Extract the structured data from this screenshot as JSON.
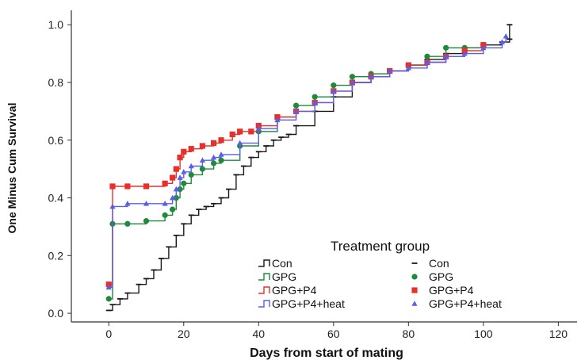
{
  "chart_data": {
    "type": "line",
    "title": "",
    "xlabel": "Days from start of mating",
    "ylabel": "One Minus Cum Survival",
    "xlim": [
      -10,
      125
    ],
    "ylim": [
      -0.03,
      1.05
    ],
    "x_ticks": [
      0,
      20,
      40,
      60,
      80,
      100,
      120
    ],
    "y_ticks": [
      0.0,
      0.2,
      0.4,
      0.6,
      0.8,
      1.0
    ],
    "x_tick_labels": [
      "0",
      "20",
      "40",
      "60",
      "80",
      "100",
      "120"
    ],
    "y_tick_labels": [
      "0.0",
      "0.2",
      "0.4",
      "0.6",
      "0.8",
      "1.0"
    ],
    "grid": false,
    "legend": {
      "title": "Treatment group",
      "placement": "bottom-right",
      "line_entries": [
        "Con",
        "GPG",
        "GPG+P4",
        "GPG+P4+heat"
      ],
      "marker_entries": [
        "Con",
        "GPG",
        "GPG+P4",
        "GPG+P4+heat"
      ]
    },
    "series": [
      {
        "name": "Con",
        "color": "#1a1a1a",
        "marker": "dash",
        "step": true,
        "x": [
          0,
          1,
          3,
          5,
          8,
          10,
          12,
          14,
          16,
          18,
          20,
          22,
          24,
          26,
          28,
          30,
          32,
          34,
          36,
          38,
          40,
          42,
          44,
          46,
          48,
          50,
          55,
          60,
          65,
          70,
          75,
          80,
          85,
          90,
          95,
          100,
          105,
          107,
          107
        ],
        "y": [
          0.01,
          0.03,
          0.05,
          0.07,
          0.1,
          0.12,
          0.15,
          0.19,
          0.23,
          0.27,
          0.31,
          0.34,
          0.36,
          0.37,
          0.38,
          0.4,
          0.43,
          0.48,
          0.51,
          0.54,
          0.56,
          0.58,
          0.6,
          0.61,
          0.62,
          0.65,
          0.7,
          0.75,
          0.8,
          0.82,
          0.84,
          0.86,
          0.88,
          0.9,
          0.92,
          0.93,
          0.94,
          0.95,
          1.0
        ]
      },
      {
        "name": "GPG",
        "color": "#1f8a3a",
        "marker": "circle",
        "step": true,
        "x": [
          0,
          1,
          5,
          10,
          15,
          17,
          18,
          19,
          20,
          22,
          25,
          28,
          30,
          35,
          40,
          45,
          50,
          55,
          60,
          65,
          70,
          75,
          80,
          85,
          90,
          95,
          100
        ],
        "y": [
          0.05,
          0.31,
          0.31,
          0.32,
          0.34,
          0.36,
          0.4,
          0.43,
          0.45,
          0.48,
          0.5,
          0.52,
          0.53,
          0.58,
          0.63,
          0.68,
          0.72,
          0.75,
          0.79,
          0.82,
          0.83,
          0.84,
          0.86,
          0.89,
          0.92,
          0.92,
          0.93
        ]
      },
      {
        "name": "GPG+P4",
        "color": "#e8302a",
        "marker": "square",
        "step": true,
        "x": [
          0,
          1,
          5,
          10,
          15,
          17,
          18,
          19,
          20,
          22,
          25,
          28,
          30,
          33,
          35,
          38,
          40,
          45,
          50,
          55,
          60,
          65,
          70,
          75,
          80,
          85,
          90,
          95,
          100
        ],
        "y": [
          0.1,
          0.44,
          0.44,
          0.44,
          0.45,
          0.47,
          0.5,
          0.54,
          0.56,
          0.57,
          0.58,
          0.59,
          0.6,
          0.62,
          0.63,
          0.63,
          0.65,
          0.68,
          0.7,
          0.73,
          0.77,
          0.8,
          0.82,
          0.84,
          0.86,
          0.87,
          0.89,
          0.91,
          0.93
        ]
      },
      {
        "name": "GPG+P4+heat",
        "color": "#5b5fe8",
        "marker": "triangle",
        "step": true,
        "x": [
          0,
          1,
          5,
          10,
          15,
          17,
          18,
          19,
          20,
          22,
          25,
          28,
          30,
          35,
          40,
          45,
          50,
          55,
          60,
          65,
          70,
          75,
          80,
          85,
          90,
          95,
          100,
          105,
          106
        ],
        "y": [
          0.09,
          0.37,
          0.38,
          0.38,
          0.38,
          0.4,
          0.43,
          0.47,
          0.49,
          0.51,
          0.53,
          0.54,
          0.55,
          0.59,
          0.64,
          0.67,
          0.7,
          0.73,
          0.77,
          0.8,
          0.82,
          0.84,
          0.85,
          0.87,
          0.89,
          0.9,
          0.92,
          0.94,
          0.96
        ]
      }
    ]
  }
}
